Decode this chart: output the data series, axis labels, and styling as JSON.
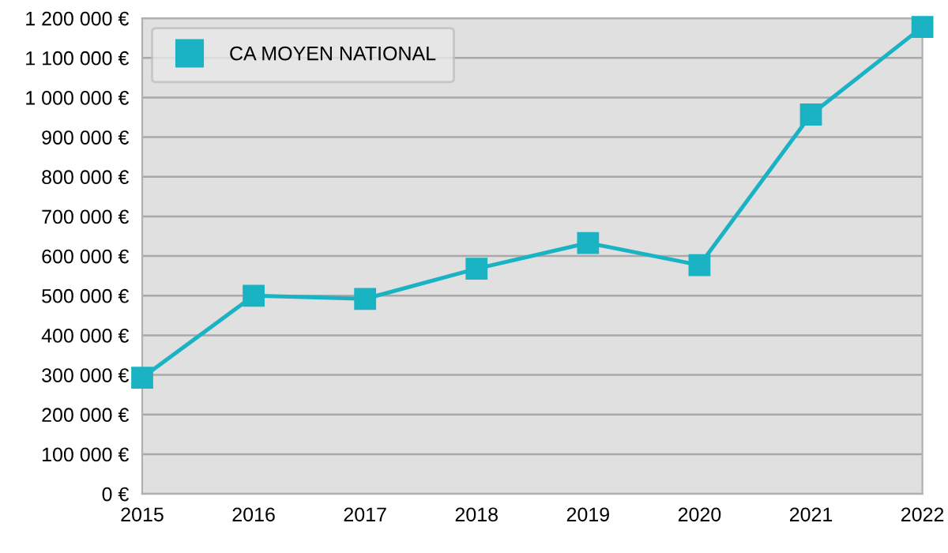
{
  "chart_data": {
    "type": "line",
    "x": [
      2015,
      2016,
      2017,
      2018,
      2019,
      2020,
      2021,
      2022
    ],
    "series": [
      {
        "name": "CA MOYEN NATIONAL",
        "color": "#1ab3c4",
        "values": [
          293000,
          500000,
          492000,
          568000,
          633000,
          577000,
          957000,
          1178000
        ]
      }
    ],
    "xlim": [
      2015,
      2022
    ],
    "xticks": [
      2015,
      2016,
      2017,
      2018,
      2019,
      2020,
      2021,
      2022
    ],
    "ylim": [
      0,
      1200000
    ],
    "yticks": [
      {
        "value": 0,
        "label": "0 €"
      },
      {
        "value": 100000,
        "label": "100 000 €"
      },
      {
        "value": 200000,
        "label": "200 000 €"
      },
      {
        "value": 300000,
        "label": "300 000 €"
      },
      {
        "value": 400000,
        "label": "400 000 €"
      },
      {
        "value": 500000,
        "label": "500 000 €"
      },
      {
        "value": 600000,
        "label": "600 000 €"
      },
      {
        "value": 700000,
        "label": "700 000 €"
      },
      {
        "value": 800000,
        "label": "800 000 €"
      },
      {
        "value": 900000,
        "label": "900 000 €"
      },
      {
        "value": 1000000,
        "label": "1 000 000 €"
      },
      {
        "value": 1100000,
        "label": "1 100 000 €"
      },
      {
        "value": 1200000,
        "label": "1 200 000 €"
      }
    ],
    "grid": "y",
    "legend": "top left",
    "marker": "square",
    "line_style": "solid"
  }
}
